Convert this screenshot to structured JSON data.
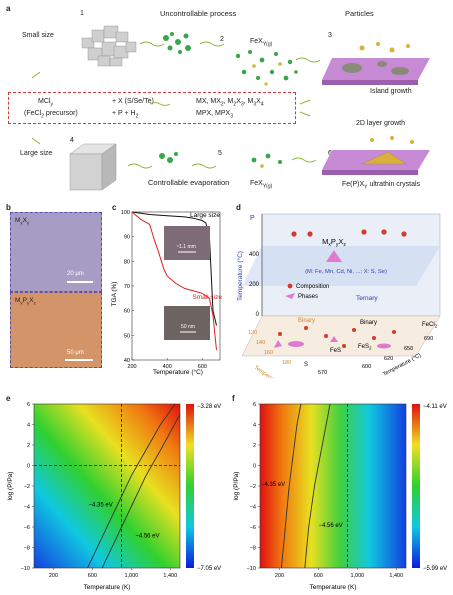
{
  "panel_a": {
    "letter": "a",
    "uncontrollable": "Uncontrollable process",
    "small_size": "Small size",
    "large_size": "Large size",
    "step1": "1",
    "step2": "2",
    "step3": "3",
    "step4": "4",
    "step5": "5",
    "step6": "6",
    "particles": "Particles",
    "island_growth": "Island growth",
    "layer_growth": "2D layer growth",
    "fex_top": "FeX",
    "fex_top_sub": "Y(g)",
    "fex_bottom": "FeX",
    "fex_bottom_sub": "Y(g)",
    "controllable": "Controllable evaporation",
    "fepx": "Fe(P)X",
    "fepx_sub": "Y",
    "fepx_suffix": " ultrathin crystals",
    "precursor_line1": "MCl",
    "precursor_line1_sub": "y",
    "precursor_line2": "(FeCl",
    "precursor_line2_sub": "2",
    "precursor_line2_suffix": " precursor)",
    "reagent1": "+ X (S/Se/Te)",
    "reagent2": "+ P + H",
    "reagent2_sub": "2",
    "products1": "MX, MX",
    "products1_sub": "2",
    "products1_b": ", M",
    "products1_b_sub": "2",
    "products1_c": "X",
    "products1_c_sub": "3",
    "products1_d": ", M",
    "products1_d_sub": "3",
    "products1_e": "X",
    "products1_e_sub": "4",
    "products2": "MPX, MPX",
    "products2_sub": "3"
  },
  "panel_b": {
    "letter": "b",
    "top_label": "M",
    "top_label_sub1": "x",
    "top_label_mid": "X",
    "top_label_sub2": "y",
    "top_scale": "20 μm",
    "bottom_label": "M",
    "bottom_label_sub1": "x",
    "bottom_label_mid": "P",
    "bottom_label_sub2": "y",
    "bottom_label_end": "X",
    "bottom_label_sub3": "z",
    "bottom_scale": "50 μm"
  },
  "panel_c": {
    "letter": "c",
    "ylabel": "TGA (%)",
    "xlabel": "Temperature (°C)",
    "large_size": "Large size",
    "small_size": "Small size",
    "inset1_scale": "~1.1 mm",
    "inset2_scale": "50 nm",
    "colors": {
      "large": "#111111",
      "small": "#e02020"
    }
  },
  "panel_d": {
    "letter": "d",
    "title": "M",
    "title_sub1": "x",
    "title_mid": "P",
    "title_sub2": "y",
    "title_end": "X",
    "title_sub3": "z",
    "subtitle": "(M: Fe, Mn, Cd, Ni, ...; X: S, Se)",
    "legend_composition": "Composition",
    "legend_phases": "Phases",
    "axis_p": "P",
    "axis_temp_vertical": "Temperature (°C)",
    "ternary": "Ternary",
    "binary_left": "Binary",
    "binary_right": "Binary",
    "fecl2": "FeCl",
    "fecl2_sub": "2",
    "fes": "FeS",
    "fes2": "FeS",
    "fes2_sub": "2",
    "s_label": "S",
    "left_axis_title": "Temperature (°C)",
    "right_axis_title": "Temperature (°C)",
    "z_ticks": [
      "400",
      "200",
      "0"
    ],
    "left_ticks": [
      "120",
      "140",
      "160",
      "180",
      "570"
    ],
    "right_ticks": [
      "600",
      "620",
      "650",
      "690"
    ]
  },
  "panel_e": {
    "letter": "e",
    "ylabel": "log (P/Pa)",
    "xlabel": "Temperature (K)",
    "label_435": "−4.35 eV",
    "label_456": "−4.56 eV",
    "cb_top": "−3.28 eV",
    "cb_bottom": "−7.05 eV"
  },
  "panel_f": {
    "letter": "f",
    "ylabel": "log (P/Pa)",
    "xlabel": "Temperature (K)",
    "label_435": "−4.35 eV",
    "label_456": "−4.56 eV",
    "cb_top": "−4.11 eV",
    "cb_bottom": "−5.99 eV"
  },
  "chart_data": [
    {
      "type": "line",
      "panel": "c",
      "xlabel": "Temperature (°C)",
      "ylabel": "TGA (%)",
      "xlim": [
        200,
        700
      ],
      "ylim": [
        40,
        100
      ],
      "x_ticks": [
        200,
        400,
        600
      ],
      "y_ticks": [
        40,
        50,
        60,
        70,
        80,
        90,
        100
      ],
      "series": [
        {
          "name": "Large size",
          "x": [
            200,
            300,
            400,
            500,
            550,
            600,
            620,
            640,
            660,
            680
          ],
          "values": [
            100,
            99,
            98.5,
            98,
            97.5,
            96.5,
            95.5,
            90,
            60,
            54
          ]
        },
        {
          "name": "Small size",
          "x": [
            200,
            250,
            300,
            330,
            350,
            380,
            400,
            450,
            500,
            550,
            600,
            640,
            660,
            680
          ],
          "values": [
            100,
            97,
            95,
            88,
            84,
            77,
            74,
            71,
            69,
            68,
            67,
            65,
            58,
            44
          ]
        }
      ]
    },
    {
      "type": "heatmap",
      "panel": "e",
      "xlabel": "Temperature (K)",
      "ylabel": "log (P/Pa)",
      "xlim": [
        0,
        1500
      ],
      "ylim": [
        -10,
        6
      ],
      "x_ticks": [
        200,
        600,
        1000,
        1400
      ],
      "x_tick_labels": [
        "200",
        "600",
        "1,000",
        "1,400"
      ],
      "y_ticks": [
        -10,
        -8,
        -6,
        -4,
        -2,
        0,
        2,
        4,
        6
      ],
      "colorbar_range_eV": [
        -7.05,
        -3.28
      ],
      "contours": [
        {
          "label": "−4.35 eV",
          "x": [
            550,
            700,
            850,
            1000,
            1150,
            1300,
            1450
          ],
          "y": [
            -10,
            -7,
            -4,
            -1,
            1.5,
            4,
            6
          ]
        },
        {
          "label": "−4.56 eV",
          "x": [
            700,
            850,
            1000,
            1150,
            1300,
            1500
          ],
          "y": [
            -10,
            -7,
            -4,
            -1,
            1.5,
            5
          ]
        }
      ],
      "dashed_lines": {
        "x": 900,
        "y": 0
      }
    },
    {
      "type": "heatmap",
      "panel": "f",
      "xlabel": "Temperature (K)",
      "ylabel": "log (P/Pa)",
      "xlim": [
        0,
        1500
      ],
      "ylim": [
        -10,
        6
      ],
      "x_ticks": [
        200,
        600,
        1000,
        1400
      ],
      "x_tick_labels": [
        "200",
        "600",
        "1,000",
        "1,400"
      ],
      "y_ticks": [
        -10,
        -8,
        -6,
        -4,
        -2,
        0,
        2,
        4,
        6
      ],
      "colorbar_range_eV": [
        -5.99,
        -4.11
      ],
      "contours": [
        {
          "label": "−4.35 eV",
          "x": [
            220,
            260,
            300,
            340,
            380,
            420
          ],
          "y": [
            -10,
            -6,
            -2,
            1,
            4,
            6
          ]
        },
        {
          "label": "−4.56 eV",
          "x": [
            460,
            500,
            560,
            620,
            680,
            720
          ],
          "y": [
            -10,
            -6,
            -2,
            1,
            4,
            6
          ]
        }
      ],
      "dashed_lines": {
        "x": 900
      }
    }
  ]
}
